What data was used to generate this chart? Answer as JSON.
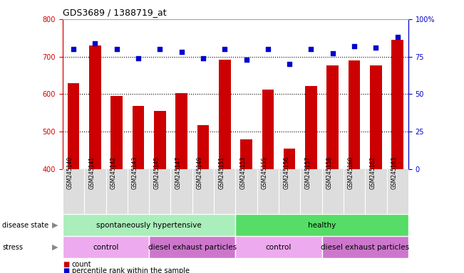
{
  "title": "GDS3689 / 1388719_at",
  "samples": [
    "GSM245140",
    "GSM245141",
    "GSM245142",
    "GSM245143",
    "GSM245145",
    "GSM245147",
    "GSM245149",
    "GSM245151",
    "GSM245153",
    "GSM245155",
    "GSM245156",
    "GSM245157",
    "GSM245158",
    "GSM245160",
    "GSM245162",
    "GSM245163"
  ],
  "counts": [
    630,
    730,
    595,
    568,
    555,
    603,
    517,
    692,
    479,
    612,
    456,
    622,
    677,
    689,
    677,
    744
  ],
  "percentiles": [
    80,
    84,
    80,
    74,
    80,
    78,
    74,
    80,
    73,
    80,
    70,
    80,
    77,
    82,
    81,
    88
  ],
  "ylim_left": [
    400,
    800
  ],
  "ylim_right": [
    0,
    100
  ],
  "yticks_left": [
    400,
    500,
    600,
    700,
    800
  ],
  "yticks_right": [
    0,
    25,
    50,
    75,
    100
  ],
  "bar_color": "#cc0000",
  "dot_color": "#0000cc",
  "disease_state_groups": [
    {
      "label": "spontaneously hypertensive",
      "start": 0,
      "end": 8,
      "color": "#aaeebb"
    },
    {
      "label": "healthy",
      "start": 8,
      "end": 16,
      "color": "#55dd66"
    }
  ],
  "stress_groups": [
    {
      "label": "control",
      "start": 0,
      "end": 4,
      "color": "#eeaaee"
    },
    {
      "label": "diesel exhaust particles",
      "start": 4,
      "end": 8,
      "color": "#cc77cc"
    },
    {
      "label": "control",
      "start": 8,
      "end": 12,
      "color": "#eeaaee"
    },
    {
      "label": "diesel exhaust particles",
      "start": 12,
      "end": 16,
      "color": "#cc77cc"
    }
  ],
  "ylabel_left_color": "#cc0000",
  "ylabel_right_color": "#0000cc",
  "sample_bg_color": "#dddddd"
}
